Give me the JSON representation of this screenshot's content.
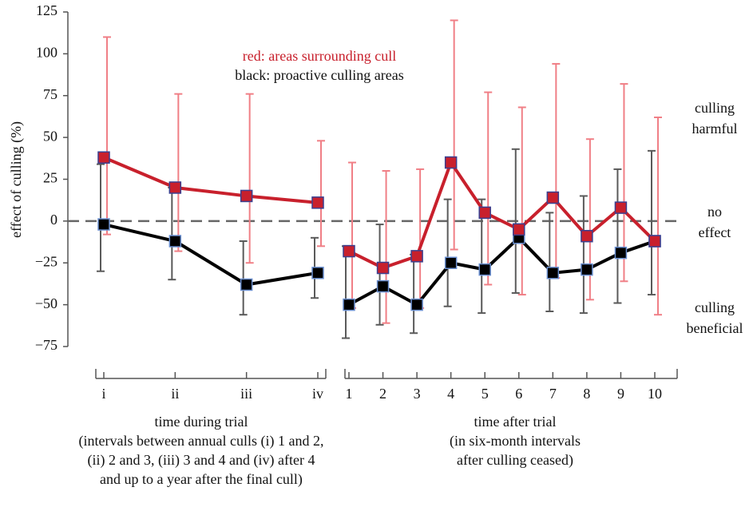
{
  "chart_data": {
    "type": "line",
    "ylabel": "effect of culling (%)",
    "ylim": [
      -75,
      125
    ],
    "yticks": [
      {
        "value": -75,
        "label": "−75"
      },
      {
        "value": -50,
        "label": "−50"
      },
      {
        "value": -25,
        "label": "−25"
      },
      0,
      25,
      50,
      75,
      100,
      125
    ],
    "zero_line": true,
    "series": [
      {
        "name": "red: areas surrounding cull",
        "color": "#c8202c",
        "error_color": "#f07f86",
        "marker_edge": "#3a3f8f"
      },
      {
        "name": "black: proactive culling areas",
        "color": "#000000",
        "error_color": "#5a5a5a",
        "marker_edge": "#6a8fd0"
      }
    ],
    "annotations": [
      [
        "culling",
        "harmful"
      ],
      [
        "no",
        "effect"
      ],
      [
        "culling",
        "beneficial"
      ]
    ],
    "panels": [
      {
        "categories": [
          "i",
          "ii",
          "iii",
          "iv"
        ],
        "xlabel": [
          "time during trial",
          "(intervals between annual culls  (i) 1 and 2,",
          "(ii) 2 and 3, (iii) 3 and 4 and (iv) after 4",
          "and up to a year after the final cull)"
        ],
        "series": [
          {
            "values": [
              38,
              20,
              15,
              11
            ],
            "lower": [
              -8,
              -18,
              -25,
              -15
            ],
            "upper": [
              110,
              76,
              76,
              48
            ]
          },
          {
            "values": [
              -2,
              -12,
              -38,
              -31
            ],
            "lower": [
              -30,
              -35,
              -56,
              -46
            ],
            "upper": [
              34,
              20,
              -12,
              -10
            ]
          }
        ]
      },
      {
        "categories": [
          "1",
          "2",
          "3",
          "4",
          "5",
          "6",
          "7",
          "8",
          "9",
          "10"
        ],
        "xlabel": [
          "time after trial",
          "(in six-month intervals",
          "after culling ceased)"
        ],
        "series": [
          {
            "values": [
              -18,
              -28,
              -21,
              35,
              5,
              -5,
              14,
              -9,
              8,
              -12
            ],
            "lower": [
              -52,
              -61,
              -52,
              -17,
              -38,
              -44,
              -34,
              -47,
              -36,
              -56
            ],
            "upper": [
              35,
              30,
              31,
              120,
              77,
              68,
              94,
              49,
              82,
              62
            ]
          },
          {
            "values": [
              -50,
              -39,
              -50,
              -25,
              -29,
              -10,
              -31,
              -29,
              -19,
              -12
            ],
            "lower": [
              -70,
              -62,
              -67,
              -51,
              -55,
              -43,
              -54,
              -55,
              -49,
              -44
            ],
            "upper": [
              -15,
              -2,
              -20,
              13,
              13,
              43,
              5,
              15,
              31,
              42
            ]
          }
        ]
      }
    ]
  }
}
